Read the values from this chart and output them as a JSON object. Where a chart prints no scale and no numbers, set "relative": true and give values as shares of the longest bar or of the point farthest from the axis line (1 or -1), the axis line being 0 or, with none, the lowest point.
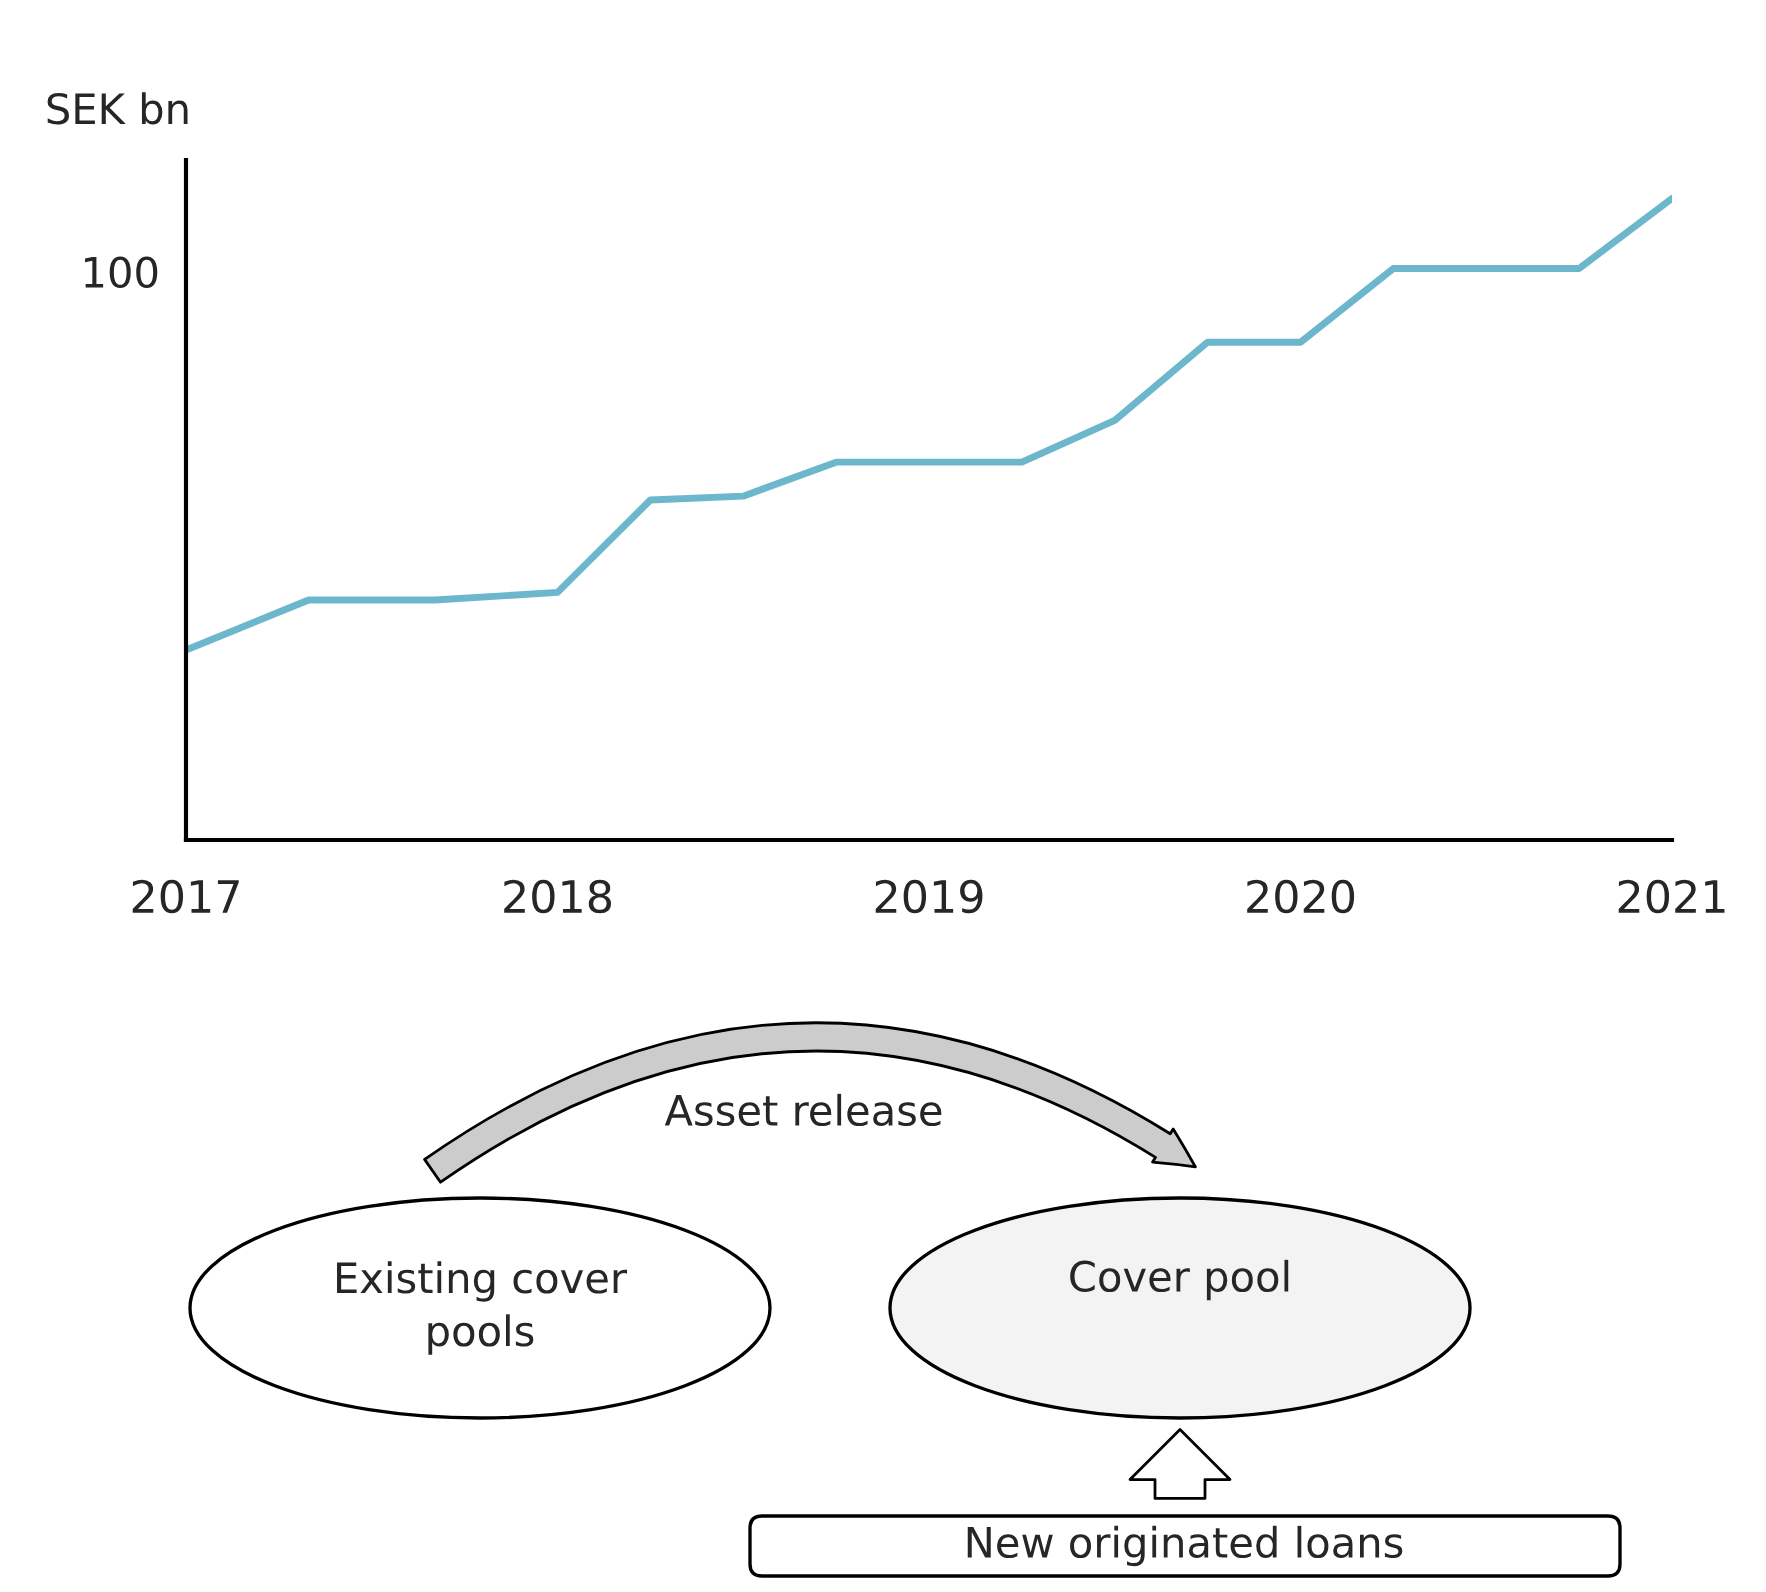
{
  "chart_data": {
    "type": "line",
    "ylabel": "SEK bn",
    "relative": true,
    "x": [
      2017,
      2017.33,
      2017.67,
      2018,
      2018.25,
      2018.5,
      2018.75,
      2019,
      2019.25,
      2019.5,
      2019.75,
      2020,
      2020.25,
      2020.5,
      2020.75,
      2021
    ],
    "series": [
      {
        "color": "#6cb7cb",
        "values": [
          0.296,
          0.374,
          0.374,
          0.386,
          0.53,
          0.536,
          0.589,
          0.589,
          0.589,
          0.654,
          0.776,
          0.776,
          0.891,
          0.891,
          0.891,
          1
        ]
      }
    ],
    "xlim": [
      2017,
      2021
    ],
    "xticks": [
      2017,
      2018,
      2019,
      2020,
      2021
    ],
    "grid": false,
    "legend": false,
    "marker": "none",
    "line_style": "solid",
    "annotations": [
      "100",
      "Asset release",
      "Existing cover\npools",
      "Cover pool",
      "New originated loans"
    ]
  }
}
